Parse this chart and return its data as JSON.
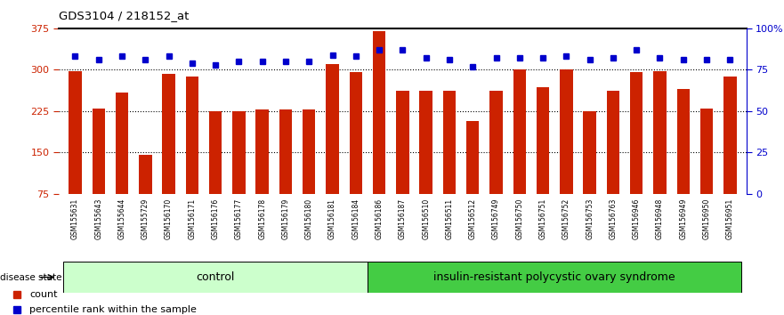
{
  "title": "GDS3104 / 218152_at",
  "samples": [
    "GSM155631",
    "GSM155643",
    "GSM155644",
    "GSM155729",
    "GSM156170",
    "GSM156171",
    "GSM156176",
    "GSM156177",
    "GSM156178",
    "GSM156179",
    "GSM156180",
    "GSM156181",
    "GSM156184",
    "GSM156186",
    "GSM156187",
    "GSM156510",
    "GSM156511",
    "GSM156512",
    "GSM156749",
    "GSM156750",
    "GSM156751",
    "GSM156752",
    "GSM156753",
    "GSM156763",
    "GSM156946",
    "GSM156948",
    "GSM156949",
    "GSM156950",
    "GSM156951"
  ],
  "bar_values": [
    298,
    230,
    258,
    145,
    292,
    287,
    225,
    225,
    228,
    228,
    228,
    310,
    295,
    370,
    262,
    262,
    262,
    207,
    262,
    300,
    268,
    300,
    225,
    262,
    295,
    297,
    265,
    230,
    287
  ],
  "percentile_values": [
    83,
    81,
    83,
    81,
    83,
    79,
    78,
    80,
    80,
    80,
    80,
    84,
    83,
    87,
    87,
    82,
    81,
    77,
    82,
    82,
    82,
    83,
    81,
    82,
    87,
    82,
    81,
    81,
    81
  ],
  "n_control": 13,
  "ylim_left": [
    75,
    375
  ],
  "ylim_right": [
    0,
    100
  ],
  "left_yticks": [
    75,
    150,
    225,
    300,
    375
  ],
  "right_yticks": [
    0,
    25,
    50,
    75,
    100
  ],
  "right_tick_labels": [
    "0",
    "25",
    "50",
    "75",
    "100%"
  ],
  "bar_color": "#cc2200",
  "dot_color": "#0000cc",
  "control_color": "#ccffcc",
  "pcos_color": "#44cc44",
  "label_bg_color": "#cccccc",
  "group_label_control": "control",
  "group_label_pcos": "insulin-resistant polycystic ovary syndrome",
  "disease_state_label": "disease state"
}
